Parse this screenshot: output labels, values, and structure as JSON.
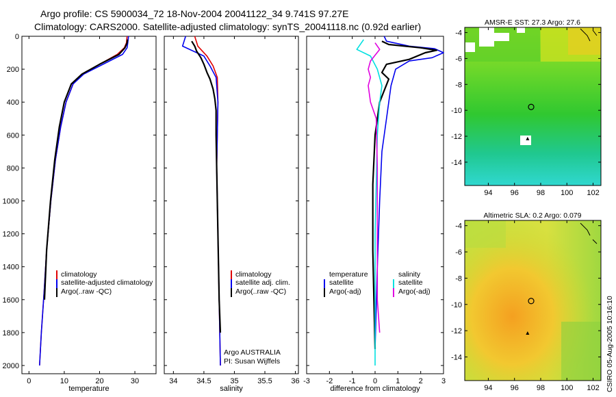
{
  "header": {
    "line1": "Argo profile: CS 5900034_72 18-Nov-2004 20041122_34 9.741S 97.27E",
    "line2": "Climatology: CARS2000. Satellite-adjusted climatology: synTS_20041118.nc (0.92d earlier)"
  },
  "colors": {
    "climatology": "#e00000",
    "satellite": "#0000ee",
    "argo": "#000000",
    "salinity_sat": "#00e0e0",
    "salinity_argo": "#e000e0"
  },
  "chart_data": [
    {
      "type": "line",
      "id": "temperature",
      "xlabel": "temperature",
      "xlim": [
        -2,
        36
      ],
      "ylim": [
        2050,
        0
      ],
      "xticks": [
        "0",
        "10",
        "20",
        "30"
      ],
      "xtick_values": [
        0,
        10,
        20,
        30
      ],
      "yticks": [
        "0",
        "200",
        "400",
        "600",
        "800",
        "1000",
        "1200",
        "1400",
        "1600",
        "1800",
        "2000"
      ],
      "ytick_values": [
        0,
        200,
        400,
        600,
        800,
        1000,
        1200,
        1400,
        1600,
        1800,
        2000
      ],
      "legend": [
        "climatology",
        "satellite-adjusted climatology",
        "Argo(..raw -QC)"
      ],
      "series": [
        {
          "name": "climatology",
          "color_key": "climatology",
          "x": [
            27.8,
            27.6,
            27,
            25,
            20,
            15,
            12.5,
            10.5,
            9,
            7.5,
            6.2,
            5,
            4.3,
            3.5,
            3
          ],
          "y": [
            0,
            40,
            70,
            110,
            170,
            230,
            290,
            400,
            550,
            750,
            1000,
            1300,
            1550,
            1800,
            2000
          ]
        },
        {
          "name": "satellite-adjusted climatology",
          "color_key": "satellite",
          "x": [
            28.2,
            28,
            27.8,
            26.5,
            21,
            15.5,
            12.5,
            10.5,
            9,
            7.5,
            6.2,
            5,
            4.3,
            3.5,
            3
          ],
          "y": [
            0,
            40,
            70,
            110,
            170,
            230,
            290,
            400,
            550,
            750,
            1000,
            1300,
            1550,
            1800,
            2000
          ]
        },
        {
          "name": "Argo(..raw -QC)",
          "color_key": "argo",
          "x": [
            27.9,
            27.8,
            27.2,
            25.5,
            20,
            15,
            12,
            10,
            8.6,
            7.3,
            6.1,
            5,
            4.4
          ],
          "y": [
            20,
            40,
            70,
            110,
            170,
            230,
            290,
            400,
            550,
            750,
            1000,
            1300,
            1600
          ]
        }
      ]
    },
    {
      "type": "line",
      "id": "salinity",
      "xlabel": "salinity",
      "xlim": [
        33.85,
        36.05
      ],
      "ylim": [
        2050,
        0
      ],
      "xticks": [
        "34",
        "34.5",
        "35",
        "35.5",
        "36"
      ],
      "xtick_values": [
        34,
        34.5,
        35,
        35.5,
        36
      ],
      "legend": [
        "climatology",
        "satellite adj. clim.",
        "Argo(..raw -QC)"
      ],
      "annotation": [
        "Argo AUSTRALIA",
        "PI: Susan Wijffels"
      ],
      "series": [
        {
          "name": "climatology",
          "color_key": "climatology",
          "x": [
            34.35,
            34.4,
            34.55,
            34.65,
            34.72,
            34.73,
            34.72,
            34.71,
            34.72,
            34.73,
            34.74,
            34.75,
            34.76,
            34.77
          ],
          "y": [
            0,
            60,
            120,
            180,
            250,
            400,
            600,
            800,
            1000,
            1200,
            1400,
            1600,
            1800,
            2000
          ]
        },
        {
          "name": "satellite adj. clim.",
          "color_key": "satellite",
          "x": [
            34.2,
            34.15,
            34.5,
            34.6,
            34.7,
            34.73,
            34.72,
            34.71,
            34.72,
            34.73,
            34.74,
            34.75,
            34.76,
            34.77
          ],
          "y": [
            0,
            60,
            120,
            180,
            250,
            400,
            600,
            800,
            1000,
            1200,
            1400,
            1600,
            1800,
            2000
          ]
        },
        {
          "name": "Argo(..raw -QC)",
          "color_key": "argo",
          "x": [
            34.3,
            34.35,
            34.38,
            34.45,
            34.5,
            34.55,
            34.6,
            34.65,
            34.68,
            34.7,
            34.7,
            34.71,
            34.72,
            34.73,
            34.74,
            34.75,
            34.77
          ],
          "y": [
            30,
            60,
            90,
            130,
            170,
            220,
            260,
            320,
            380,
            450,
            600,
            800,
            1000,
            1200,
            1400,
            1600,
            1800
          ]
        }
      ]
    },
    {
      "type": "line",
      "id": "difference",
      "xlabel": "difference from climatology",
      "xlim": [
        -3,
        3
      ],
      "ylim": [
        2050,
        0
      ],
      "xticks": [
        "-3",
        "-2",
        "-1",
        "0",
        "1",
        "2",
        "3"
      ],
      "xtick_values": [
        -3,
        -2,
        -1,
        0,
        1,
        2,
        3
      ],
      "legend_left": [
        "temperature",
        "satellite",
        "Argo(-adj)"
      ],
      "legend_right": [
        "salinity",
        "satellite",
        "Argo(-adj)"
      ],
      "series": [
        {
          "name": "temperature satellite",
          "color_key": "satellite",
          "x": [
            0.4,
            0.5,
            1.5,
            2.6,
            3,
            2.5,
            1.5,
            0.9,
            0.7,
            0.5,
            0.3,
            0.2,
            0.1,
            0
          ],
          "y": [
            0,
            30,
            60,
            75,
            100,
            130,
            150,
            200,
            300,
            500,
            700,
            1000,
            1400,
            1900
          ]
        },
        {
          "name": "temperature Argo(-adj)",
          "color_key": "argo",
          "x": [
            0.3,
            0.6,
            2,
            2.7,
            2.2,
            1.5,
            0.5,
            0.3,
            0.6,
            0.4,
            0.2,
            0,
            -0.1,
            -0.1,
            -0.05,
            0
          ],
          "y": [
            30,
            50,
            70,
            85,
            100,
            140,
            170,
            220,
            260,
            330,
            400,
            600,
            900,
            1300,
            1600,
            1900
          ]
        },
        {
          "name": "salinity satellite",
          "color_key": "salinity_sat",
          "x": [
            -0.5,
            -0.8,
            -0.2,
            0.1,
            0.3,
            0.2,
            0.1,
            0.05,
            0,
            0,
            0,
            0
          ],
          "y": [
            20,
            80,
            120,
            200,
            300,
            400,
            600,
            900,
            1200,
            1500,
            1800,
            2000
          ]
        },
        {
          "name": "salinity Argo(-adj)",
          "color_key": "salinity_argo",
          "x": [
            0,
            0.2,
            -0.2,
            -0.3,
            -0.2,
            -0.3,
            -0.2,
            0.05,
            0.1,
            0.1,
            0.1,
            0.2
          ],
          "y": [
            40,
            80,
            150,
            200,
            250,
            300,
            400,
            500,
            800,
            1200,
            1600,
            1800
          ]
        }
      ]
    },
    {
      "type": "heatmap",
      "id": "sst_map",
      "title": "AMSR-E SST: 27.3 Argo: 27.6",
      "xlim": [
        92.2,
        102.6
      ],
      "ylim": [
        -15.8,
        -3.6
      ],
      "xticks": [
        "94",
        "96",
        "98",
        "100",
        "102"
      ],
      "xtick_values": [
        94,
        96,
        98,
        100,
        102
      ],
      "yticks": [
        "-4",
        "-6",
        "-8",
        "-10",
        "-12",
        "-14"
      ],
      "ytick_values": [
        -4,
        -6,
        -8,
        -10,
        -12,
        -14
      ],
      "argo_lon": 97.27,
      "argo_lat": -9.741
    },
    {
      "type": "heatmap",
      "id": "sla_map",
      "title": "Altimetric SLA: 0.2 Argo: 0.079",
      "xlim": [
        92.2,
        102.6
      ],
      "ylim": [
        -15.8,
        -3.6
      ],
      "xticks": [
        "94",
        "96",
        "98",
        "100",
        "102"
      ],
      "xtick_values": [
        94,
        96,
        98,
        100,
        102
      ],
      "yticks": [
        "-4",
        "-6",
        "-8",
        "-10",
        "-12",
        "-14"
      ],
      "ytick_values": [
        -4,
        -6,
        -8,
        -10,
        -12,
        -14
      ],
      "argo_lon": 97.27,
      "argo_lat": -9.741
    }
  ],
  "footer": {
    "credit": "CSIRO 05-Aug-2005 10:16:10"
  }
}
